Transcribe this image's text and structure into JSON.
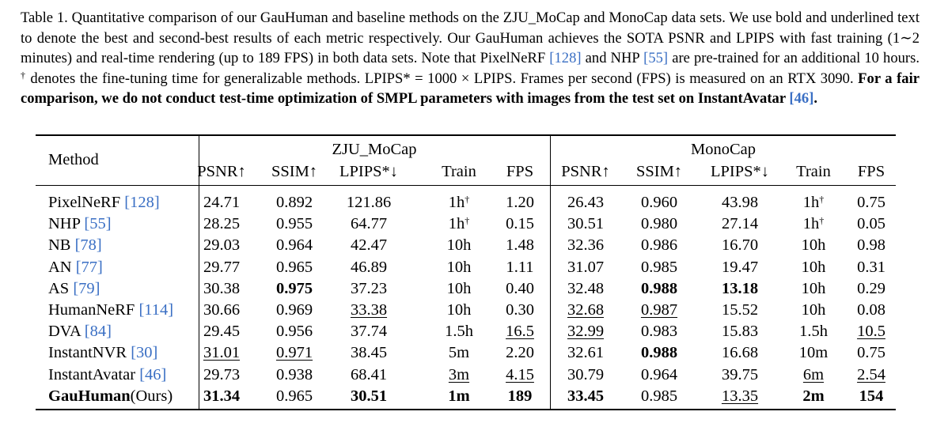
{
  "caption": {
    "label": "Table 1.",
    "p1": " Quantitative comparison of our GauHuman and baseline methods on the ZJU_MoCap and MonoCap data sets. We use bold and underlined text to denote the best and second-best results of each metric respectively. Our GauHuman achieves the SOTA PSNR and LPIPS with fast training (1∼2 minutes) and real-time rendering (up to 189 FPS) in both data sets. Note that PixelNeRF ",
    "ref1": "[128]",
    "p2": " and NHP ",
    "ref2": "[55]",
    "p3": " are pre-trained for an additional 10 hours. ",
    "dagger": "†",
    "p4": " denotes the fine-tuning time for generalizable methods. LPIPS* = 1000 × LPIPS. Frames per second (FPS) is measured on an RTX 3090. ",
    "bold": "For a fair comparison, we do not conduct test-time optimization of SMPL parameters with images from the test set on InstantAvatar ",
    "ref3": "[46]",
    "bold_end": "."
  },
  "table": {
    "method_header": "Method",
    "groups": [
      "ZJU_MoCap",
      "MonoCap"
    ],
    "columns": [
      "PSNR↑",
      "SSIM↑",
      "LPIPS*↓",
      "Train",
      "FPS",
      "PSNR↑",
      "SSIM↑",
      "LPIPS*↓",
      "Train",
      "FPS"
    ],
    "rows": [
      {
        "name": "PixelNeRF ",
        "ref": "[128]",
        "name_bold": false,
        "cells": [
          {
            "v": "24.71"
          },
          {
            "v": "0.892"
          },
          {
            "v": "121.86"
          },
          {
            "v": "1h",
            "sup": "†"
          },
          {
            "v": "1.20"
          },
          {
            "v": "26.43"
          },
          {
            "v": "0.960"
          },
          {
            "v": "43.98"
          },
          {
            "v": "1h",
            "sup": "†"
          },
          {
            "v": "0.75"
          }
        ]
      },
      {
        "name": "NHP ",
        "ref": "[55]",
        "name_bold": false,
        "cells": [
          {
            "v": "28.25"
          },
          {
            "v": "0.955"
          },
          {
            "v": "64.77"
          },
          {
            "v": "1h",
            "sup": "†"
          },
          {
            "v": "0.15"
          },
          {
            "v": "30.51"
          },
          {
            "v": "0.980"
          },
          {
            "v": "27.14"
          },
          {
            "v": "1h",
            "sup": "†"
          },
          {
            "v": "0.05"
          }
        ]
      },
      {
        "name": "NB ",
        "ref": "[78]",
        "name_bold": false,
        "cells": [
          {
            "v": "29.03"
          },
          {
            "v": "0.964"
          },
          {
            "v": "42.47"
          },
          {
            "v": "10h"
          },
          {
            "v": "1.48"
          },
          {
            "v": "32.36"
          },
          {
            "v": "0.986"
          },
          {
            "v": "16.70"
          },
          {
            "v": "10h"
          },
          {
            "v": "0.98"
          }
        ]
      },
      {
        "name": "AN ",
        "ref": "[77]",
        "name_bold": false,
        "cells": [
          {
            "v": "29.77"
          },
          {
            "v": "0.965"
          },
          {
            "v": "46.89"
          },
          {
            "v": "10h"
          },
          {
            "v": "1.11"
          },
          {
            "v": "31.07"
          },
          {
            "v": "0.985"
          },
          {
            "v": "19.47"
          },
          {
            "v": "10h"
          },
          {
            "v": "0.31"
          }
        ]
      },
      {
        "name": "AS ",
        "ref": "[79]",
        "name_bold": false,
        "cells": [
          {
            "v": "30.38"
          },
          {
            "v": "0.975",
            "b": true
          },
          {
            "v": "37.23"
          },
          {
            "v": "10h"
          },
          {
            "v": "0.40"
          },
          {
            "v": "32.48"
          },
          {
            "v": "0.988",
            "b": true
          },
          {
            "v": "13.18",
            "b": true
          },
          {
            "v": "10h"
          },
          {
            "v": "0.29"
          }
        ]
      },
      {
        "name": "HumanNeRF ",
        "ref": "[114]",
        "name_bold": false,
        "cells": [
          {
            "v": "30.66"
          },
          {
            "v": "0.969"
          },
          {
            "v": "33.38",
            "u": true
          },
          {
            "v": "10h"
          },
          {
            "v": "0.30"
          },
          {
            "v": "32.68",
            "u": true
          },
          {
            "v": "0.987",
            "u": true
          },
          {
            "v": "15.52"
          },
          {
            "v": "10h"
          },
          {
            "v": "0.08"
          }
        ]
      },
      {
        "name": "DVA ",
        "ref": "[84]",
        "name_bold": false,
        "cells": [
          {
            "v": "29.45"
          },
          {
            "v": "0.956"
          },
          {
            "v": "37.74"
          },
          {
            "v": "1.5h"
          },
          {
            "v": "16.5",
            "u": true
          },
          {
            "v": "32.99",
            "u": true
          },
          {
            "v": "0.983"
          },
          {
            "v": "15.83"
          },
          {
            "v": "1.5h"
          },
          {
            "v": "10.5",
            "u": true
          }
        ]
      },
      {
        "name": "InstantNVR ",
        "ref": "[30]",
        "name_bold": false,
        "cells": [
          {
            "v": "31.01",
            "u": true
          },
          {
            "v": "0.971",
            "u": true
          },
          {
            "v": "38.45"
          },
          {
            "v": "5m"
          },
          {
            "v": "2.20"
          },
          {
            "v": "32.61"
          },
          {
            "v": "0.988",
            "b": true
          },
          {
            "v": "16.68"
          },
          {
            "v": "10m"
          },
          {
            "v": "0.75"
          }
        ]
      },
      {
        "name": "InstantAvatar ",
        "ref": "[46]",
        "name_bold": false,
        "cells": [
          {
            "v": "29.73"
          },
          {
            "v": "0.938"
          },
          {
            "v": "68.41"
          },
          {
            "v": "3m",
            "u": true
          },
          {
            "v": "4.15",
            "u": true
          },
          {
            "v": "30.79"
          },
          {
            "v": "0.964"
          },
          {
            "v": "39.75"
          },
          {
            "v": "6m",
            "u": true
          },
          {
            "v": "2.54",
            "u": true
          }
        ]
      },
      {
        "name": "GauHuman",
        "suffix": "(Ours)",
        "name_bold": true,
        "cells": [
          {
            "v": "31.34",
            "b": true
          },
          {
            "v": "0.965"
          },
          {
            "v": "30.51",
            "b": true
          },
          {
            "v": "1m",
            "b": true
          },
          {
            "v": "189",
            "b": true
          },
          {
            "v": "33.45",
            "b": true
          },
          {
            "v": "0.985"
          },
          {
            "v": "13.35",
            "u": true
          },
          {
            "v": "2m",
            "b": true
          },
          {
            "v": "154",
            "b": true
          }
        ]
      }
    ]
  },
  "colors": {
    "ref": "#3a6fc4",
    "text": "#000000"
  }
}
